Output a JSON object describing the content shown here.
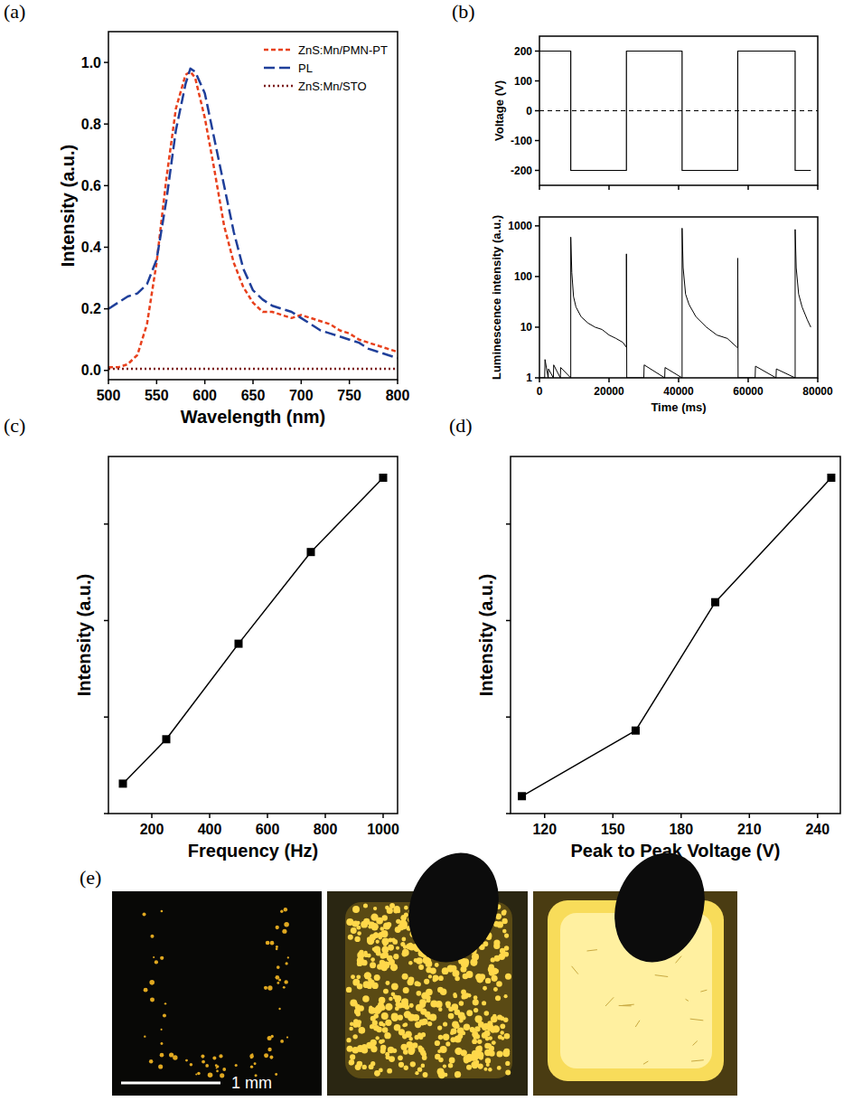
{
  "chart_data": [
    {
      "type": "line",
      "panel": "(a)",
      "xlabel": "Wavelength (nm)",
      "ylabel": "Intensity (a.u.)",
      "x": [
        500,
        510,
        520,
        530,
        540,
        550,
        560,
        570,
        580,
        585,
        590,
        600,
        610,
        620,
        630,
        640,
        650,
        660,
        670,
        680,
        690,
        700,
        710,
        720,
        730,
        740,
        750,
        760,
        770,
        780,
        790,
        800
      ],
      "series": [
        {
          "name": "ZnS:Mn/PMN-PT",
          "color": "#e8401c",
          "line_style": "dashed",
          "values": [
            0.01,
            0.01,
            0.02,
            0.05,
            0.15,
            0.35,
            0.62,
            0.85,
            0.96,
            0.97,
            0.95,
            0.82,
            0.65,
            0.47,
            0.35,
            0.27,
            0.22,
            0.19,
            0.19,
            0.18,
            0.17,
            0.18,
            0.17,
            0.16,
            0.15,
            0.13,
            0.12,
            0.1,
            0.09,
            0.08,
            0.07,
            0.06
          ]
        },
        {
          "name": "PL",
          "color": "#1f3f9a",
          "line_style": "long-dashed",
          "values": [
            0.2,
            0.22,
            0.24,
            0.25,
            0.28,
            0.36,
            0.55,
            0.78,
            0.93,
            0.98,
            0.97,
            0.9,
            0.75,
            0.6,
            0.45,
            0.33,
            0.26,
            0.23,
            0.21,
            0.2,
            0.19,
            0.17,
            0.15,
            0.13,
            0.12,
            0.11,
            0.1,
            0.09,
            0.07,
            0.06,
            0.05,
            0.04
          ]
        },
        {
          "name": "ZnS:Mn/STO",
          "color": "#7b1a1a",
          "line_style": "dotted",
          "values": [
            0.005,
            0.005,
            0.005,
            0.005,
            0.005,
            0.005,
            0.005,
            0.005,
            0.005,
            0.005,
            0.005,
            0.005,
            0.005,
            0.005,
            0.005,
            0.005,
            0.005,
            0.005,
            0.005,
            0.005,
            0.005,
            0.005,
            0.005,
            0.005,
            0.005,
            0.005,
            0.005,
            0.005,
            0.005,
            0.005,
            0.005,
            0.005
          ]
        }
      ],
      "xlim": [
        500,
        800
      ],
      "xticks": [
        500,
        550,
        600,
        650,
        700,
        750,
        800
      ],
      "ylim": [
        -0.03,
        1.1
      ],
      "yticks": [
        {
          "value": 0,
          "label": "0.0"
        },
        {
          "value": 0.2,
          "label": "0.2"
        },
        {
          "value": 0.4,
          "label": "0.4"
        },
        {
          "value": 0.6,
          "label": "0.6"
        },
        {
          "value": 0.8,
          "label": "0.8"
        },
        {
          "value": 1,
          "label": "1.0"
        }
      ],
      "legend": "upper right"
    },
    {
      "type": "line",
      "panel": "(b)",
      "ylabel": "Voltage (V)",
      "x": [
        0,
        9000,
        9000,
        25000,
        25000,
        41000,
        41000,
        57000,
        57000,
        73500,
        73500,
        78000
      ],
      "values": [
        200,
        200,
        -200,
        -200,
        200,
        200,
        -200,
        -200,
        200,
        200,
        -200,
        -200
      ],
      "color": "#000000",
      "line_style": "solid",
      "reference_line": 0,
      "xlim": [
        0,
        80000
      ],
      "xticks": [
        0,
        20000,
        40000,
        60000,
        80000
      ],
      "ylim": [
        -250,
        250
      ],
      "yticks": [
        -200,
        -100,
        0,
        100,
        200
      ],
      "tick_labels": "y"
    },
    {
      "type": "line",
      "xlabel": "Time (ms)",
      "ylabel": "Luminescence intensity (a.u.)",
      "x": [
        0,
        1500,
        1600,
        2500,
        2600,
        4000,
        4100,
        6000,
        6100,
        9000,
        9000,
        9300,
        9800,
        10500,
        12000,
        14000,
        16000,
        18000,
        20000,
        22000,
        24000,
        25000,
        25000,
        25100,
        30000,
        30100,
        36000,
        36100,
        41000,
        41000,
        41300,
        42000,
        43000,
        45000,
        48000,
        51000,
        54000,
        56800,
        57000,
        57000,
        57100,
        62000,
        62100,
        68000,
        68100,
        73500,
        73500,
        73800,
        74500,
        75500,
        77000,
        78000
      ],
      "values": [
        1,
        1,
        2.3,
        1,
        1.5,
        1,
        1.8,
        1,
        1.6,
        1,
        600,
        120,
        40,
        25,
        16,
        12,
        10,
        9,
        7,
        6,
        5,
        4,
        280,
        1,
        1,
        1.8,
        1,
        1.6,
        1,
        900,
        150,
        45,
        28,
        16,
        10,
        7,
        6,
        4,
        4,
        230,
        1,
        1,
        1.7,
        1,
        1.5,
        1,
        850,
        150,
        45,
        25,
        14,
        10
      ],
      "color": "#000000",
      "line_style": "solid",
      "log": "y",
      "xlim": [
        0,
        80000
      ],
      "xticks": [
        0,
        20000,
        40000,
        60000,
        80000
      ],
      "ylim": [
        1,
        1500
      ],
      "yticks": [
        1,
        10,
        100,
        1000
      ]
    },
    {
      "type": "line",
      "panel": "(c)",
      "xlabel": "Frequency (Hz)",
      "ylabel": "Intensity (a.u.)",
      "x": [
        100,
        250,
        500,
        750,
        1000
      ],
      "values": [
        0.31,
        0.77,
        1.76,
        2.71,
        3.48
      ],
      "color": "#000000",
      "marker": "square",
      "line_style": "solid",
      "xlim": [
        50,
        1050
      ],
      "xticks": [
        200,
        400,
        600,
        800,
        1000
      ],
      "ylim": [
        0,
        3.7
      ],
      "yticks": [
        0,
        1,
        2,
        3
      ],
      "tick_labels": "x"
    },
    {
      "type": "line",
      "panel": "(d)",
      "xlabel": "Peak to Peak Voltage (V)",
      "ylabel": "Intensity (a.u.)",
      "x": [
        110,
        160,
        195,
        246
      ],
      "values": [
        0.18,
        0.86,
        2.19,
        3.48
      ],
      "color": "#000000",
      "marker": "square",
      "line_style": "solid",
      "xlim": [
        105,
        250
      ],
      "xticks": [
        120,
        150,
        180,
        210,
        240
      ],
      "ylim": [
        0,
        3.7
      ],
      "yticks": [
        0,
        1,
        2,
        3
      ],
      "tick_labels": "x"
    }
  ],
  "figure_e": {
    "panel": "(e)",
    "scale_bar": "1 mm"
  }
}
